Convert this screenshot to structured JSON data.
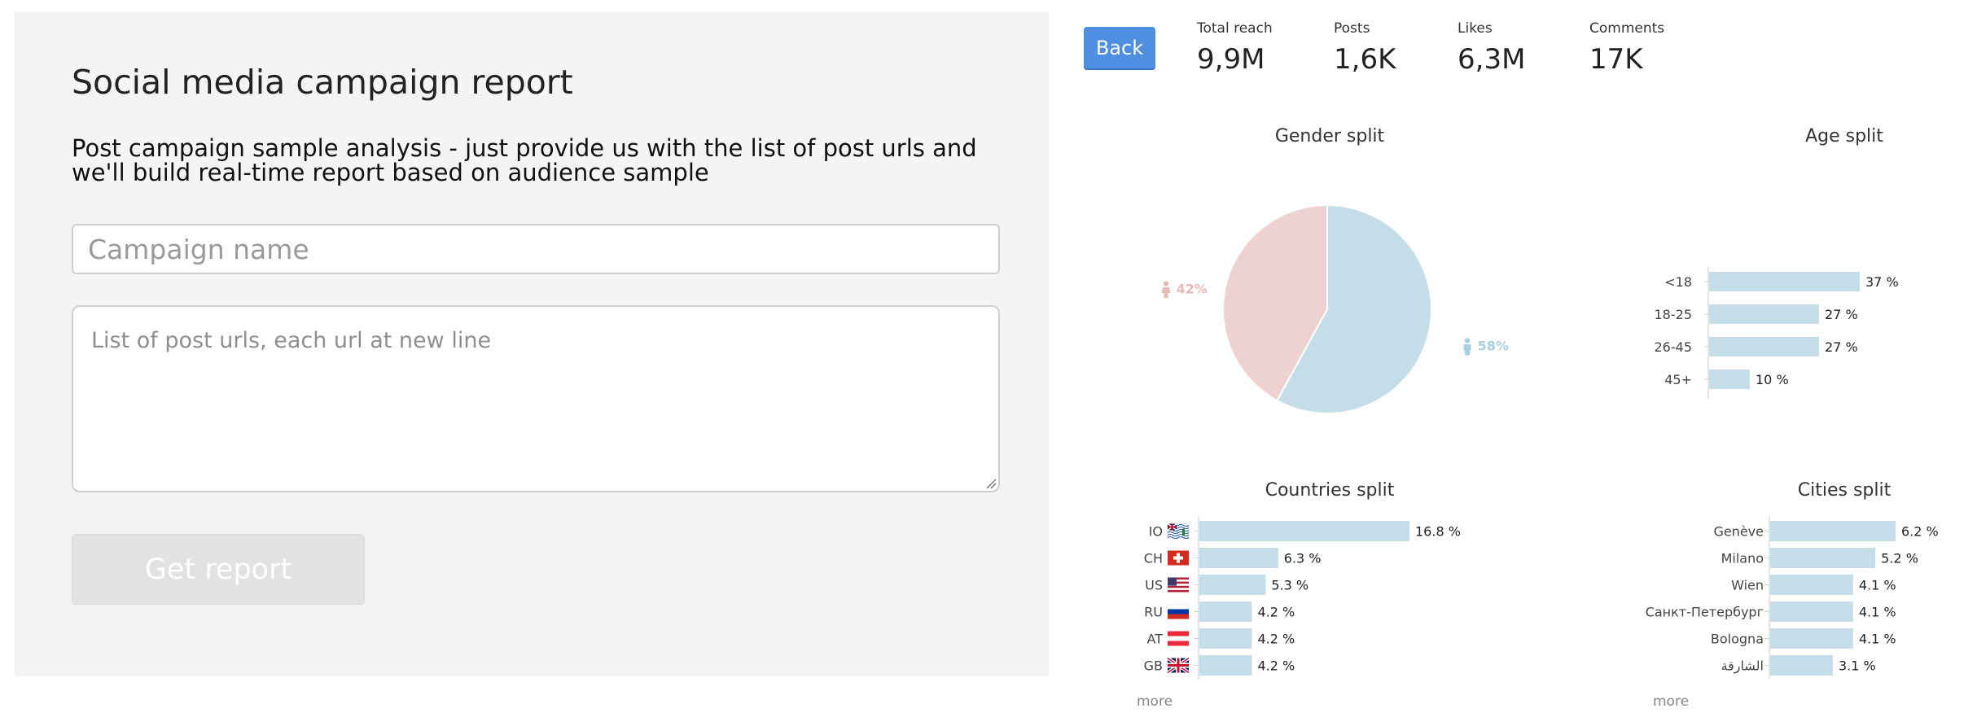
{
  "form": {
    "title": "Social media campaign report",
    "subtitle": "Post campaign sample analysis - just provide us with the list of post urls and we'll build real-time report based on audience sample",
    "campaign_placeholder": "Campaign name",
    "urls_placeholder": "List of post urls, each url at new line",
    "submit_label": "Get report"
  },
  "report": {
    "back_label": "Back",
    "stats": [
      {
        "label": "Total reach",
        "value": "9,9M"
      },
      {
        "label": "Posts",
        "value": "1,6K"
      },
      {
        "label": "Likes",
        "value": "6,3M"
      },
      {
        "label": "Comments",
        "value": "17K"
      }
    ],
    "gender": {
      "title": "Gender split",
      "female_label": "42%",
      "male_label": "58%",
      "female_value": 42,
      "male_value": 58,
      "female_color": "#eed2d2",
      "male_color": "#c4dde9"
    },
    "age": {
      "title": "Age split",
      "categories": [
        "<18",
        "18-25",
        "26-45",
        "45+"
      ],
      "values": [
        37,
        27,
        27,
        10
      ],
      "labels": [
        "37 %",
        "27 %",
        "27 %",
        "10 %"
      ],
      "bar_color": "#c4dde9"
    },
    "countries": {
      "title": "Countries split",
      "codes": [
        "IO",
        "CH",
        "US",
        "RU",
        "AT",
        "GB"
      ],
      "flags": [
        "io",
        "ch",
        "us",
        "ru",
        "at",
        "gb"
      ],
      "values": [
        16.8,
        6.3,
        5.3,
        4.2,
        4.2,
        4.2
      ],
      "labels": [
        "16.8 %",
        "6.3 %",
        "5.3 %",
        "4.2 %",
        "4.2 %",
        "4.2 %"
      ],
      "more_label": "more"
    },
    "cities": {
      "title": "Cities split",
      "names": [
        "Genève",
        "Milano",
        "Wien",
        "Санкт-Петербург",
        "Bologna",
        "الشارقة"
      ],
      "values": [
        6.2,
        5.2,
        4.1,
        4.1,
        4.1,
        3.1
      ],
      "labels": [
        "6.2 %",
        "5.2 %",
        "4.1 %",
        "4.1 %",
        "4.1 %",
        "3.1 %"
      ],
      "more_label": "more"
    }
  }
}
